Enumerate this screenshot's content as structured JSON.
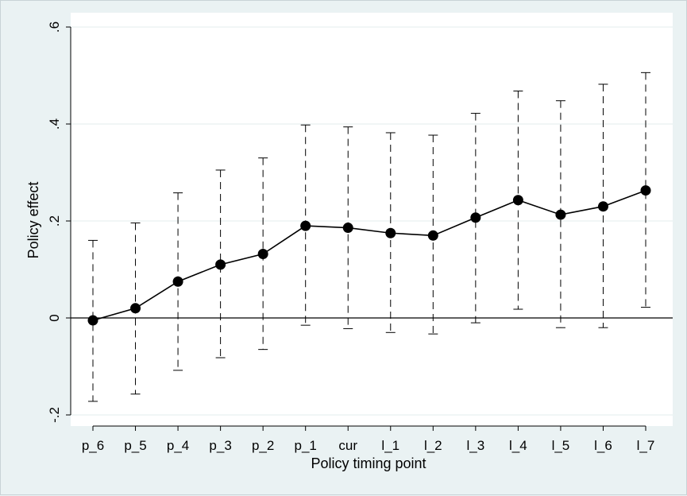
{
  "chart_data": {
    "type": "line",
    "title": "",
    "xlabel": "Policy timing point",
    "ylabel": "Policy effect",
    "categories": [
      "p_6",
      "p_5",
      "p_4",
      "p_3",
      "p_2",
      "p_1",
      "cur",
      "l_1",
      "l_2",
      "l_3",
      "l_4",
      "l_5",
      "l_6",
      "l_7"
    ],
    "yticks": [
      -0.2,
      0,
      0.2,
      0.4,
      0.6
    ],
    "ytick_labels": [
      "-.2",
      "0",
      ".2",
      ".4",
      ".6"
    ],
    "ylim": [
      -0.22,
      0.61
    ],
    "grid": true,
    "zero_line": true,
    "series": [
      {
        "values": [
          -0.005,
          0.02,
          0.075,
          0.11,
          0.132,
          0.19,
          0.186,
          0.175,
          0.17,
          0.207,
          0.243,
          0.213,
          0.23,
          0.263
        ],
        "ci_lower": [
          -0.172,
          -0.157,
          -0.108,
          -0.082,
          -0.065,
          -0.015,
          -0.022,
          -0.03,
          -0.033,
          -0.01,
          0.018,
          -0.02,
          -0.02,
          0.022
        ],
        "ci_upper": [
          0.16,
          0.196,
          0.258,
          0.305,
          0.33,
          0.398,
          0.394,
          0.382,
          0.377,
          0.422,
          0.468,
          0.448,
          0.482,
          0.506
        ],
        "marker": "circle",
        "color": "#000000",
        "ci_style": "dashed"
      }
    ]
  }
}
